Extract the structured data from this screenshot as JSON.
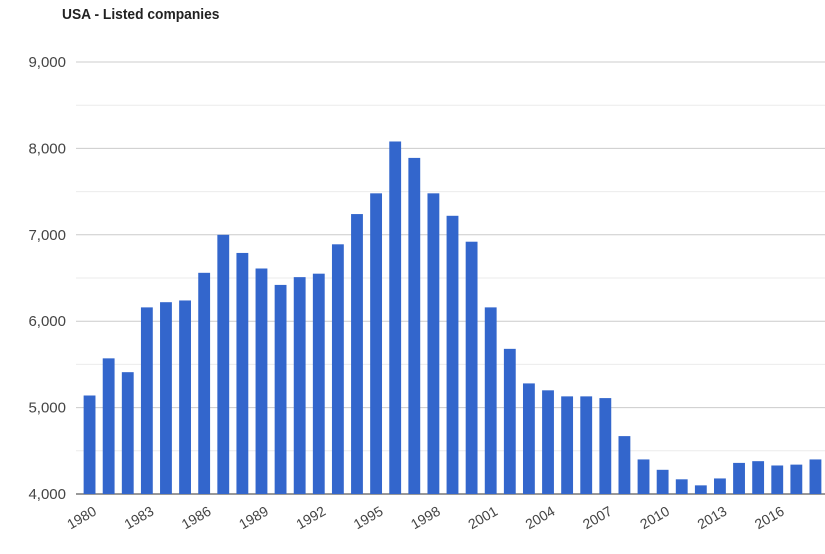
{
  "chart_data": {
    "type": "bar",
    "title": "USA - Listed companies",
    "xlabel": "",
    "ylabel": "",
    "ylim": [
      4000,
      9000
    ],
    "yticks": [
      "4,000",
      "5,000",
      "6,000",
      "7,000",
      "8,000",
      "9,000"
    ],
    "ytick_values": [
      4000,
      5000,
      6000,
      7000,
      8000,
      9000
    ],
    "xtick_labels": [
      "1980",
      "1983",
      "1986",
      "1989",
      "1992",
      "1995",
      "1998",
      "2001",
      "2004",
      "2007",
      "2010",
      "2013",
      "2016"
    ],
    "grid": true,
    "bar_color": "#3366cc",
    "categories": [
      "1980",
      "1981",
      "1982",
      "1983",
      "1984",
      "1985",
      "1986",
      "1987",
      "1988",
      "1989",
      "1990",
      "1991",
      "1992",
      "1993",
      "1994",
      "1995",
      "1996",
      "1997",
      "1998",
      "1999",
      "2000",
      "2001",
      "2002",
      "2003",
      "2004",
      "2005",
      "2006",
      "2007",
      "2008",
      "2009",
      "2010",
      "2011",
      "2012",
      "2013",
      "2014",
      "2015",
      "2016",
      "2017",
      "2018"
    ],
    "values": [
      5140,
      5570,
      5410,
      6160,
      6220,
      6240,
      6560,
      7000,
      6790,
      6610,
      6420,
      6510,
      6550,
      6890,
      7240,
      7480,
      8080,
      7890,
      7480,
      7220,
      6920,
      6160,
      5680,
      5280,
      5200,
      5130,
      5130,
      5110,
      4670,
      4400,
      4280,
      4170,
      4100,
      4180,
      4360,
      4380,
      4330,
      4340,
      4400
    ]
  }
}
